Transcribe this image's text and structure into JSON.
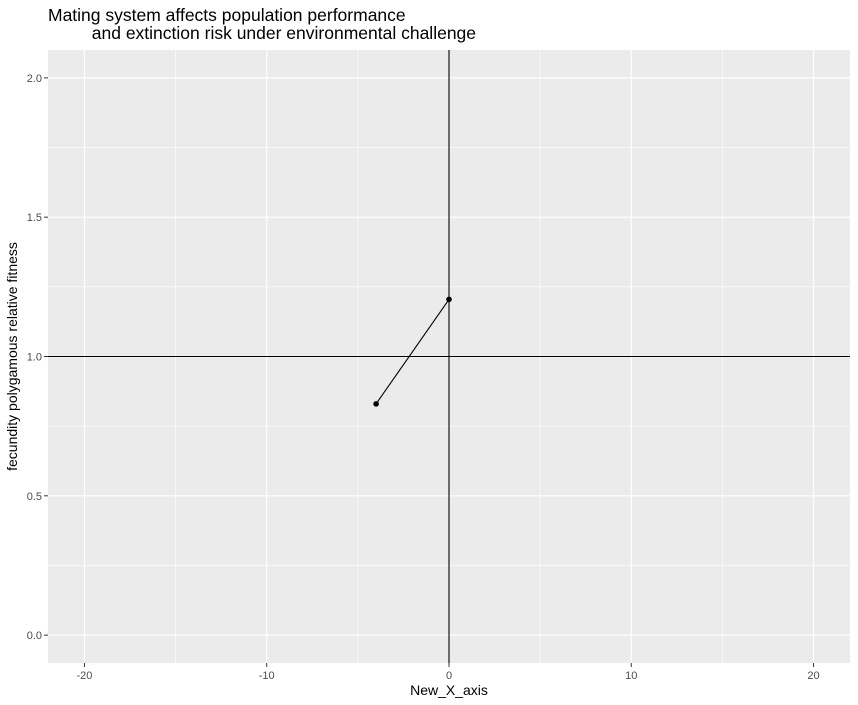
{
  "chart_data": {
    "type": "line",
    "title_lines": [
      "Mating system affects population performance",
      "         and extinction risk under environmental challenge"
    ],
    "xlabel": "New_X_axis",
    "ylabel": "fecundity polygamous relative fitness",
    "xlim": [
      -22,
      22
    ],
    "ylim": [
      -0.1,
      2.1
    ],
    "x_ticks": [
      -20,
      -10,
      0,
      10,
      20
    ],
    "x_tick_labels": [
      "-20",
      "-10",
      "0",
      "10",
      "20"
    ],
    "y_ticks": [
      0.0,
      0.5,
      1.0,
      1.5,
      2.0
    ],
    "y_tick_labels": [
      "0.0",
      "0.5",
      "1.0",
      "1.5",
      "2.0"
    ],
    "grid": true,
    "series": [
      {
        "x": [
          -4,
          0
        ],
        "y": [
          0.83,
          1.205
        ]
      }
    ],
    "reference_lines": {
      "hline_y": 1.0,
      "vline_x": 0
    },
    "colors": {
      "panel": "#ebebeb",
      "grid": "#ffffff",
      "line": "#000000",
      "tick_text": "#4d4d4d"
    }
  }
}
